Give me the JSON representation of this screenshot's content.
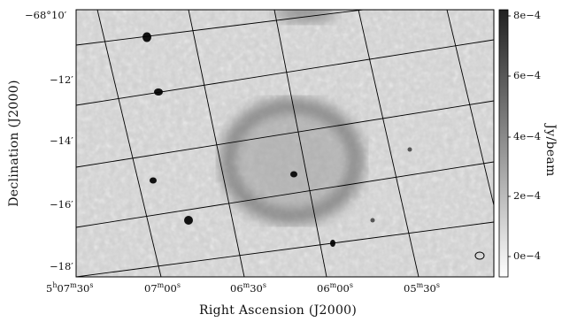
{
  "figure": {
    "xlabel": "Right Ascension (J2000)",
    "ylabel": "Declination (J2000)",
    "colorbar_label": "Jy/beam",
    "colorbar_ticks": [
      "8e−4",
      "6e−4",
      "4e−4",
      "2e−4",
      "0e−4"
    ],
    "dec_ticks": [
      "−68°10′",
      "−12′",
      "−14′",
      "−16′",
      "−18′"
    ],
    "ra_ticks": [
      {
        "h": "5",
        "m": "07",
        "s": "30",
        "show_h": true
      },
      {
        "m": "07",
        "s": "00"
      },
      {
        "m": "06",
        "s": "30"
      },
      {
        "m": "06",
        "s": "00"
      },
      {
        "m": "05",
        "s": "30"
      }
    ],
    "colors": {
      "background_gray": "#cfcfcf",
      "frame": "#000000"
    }
  }
}
